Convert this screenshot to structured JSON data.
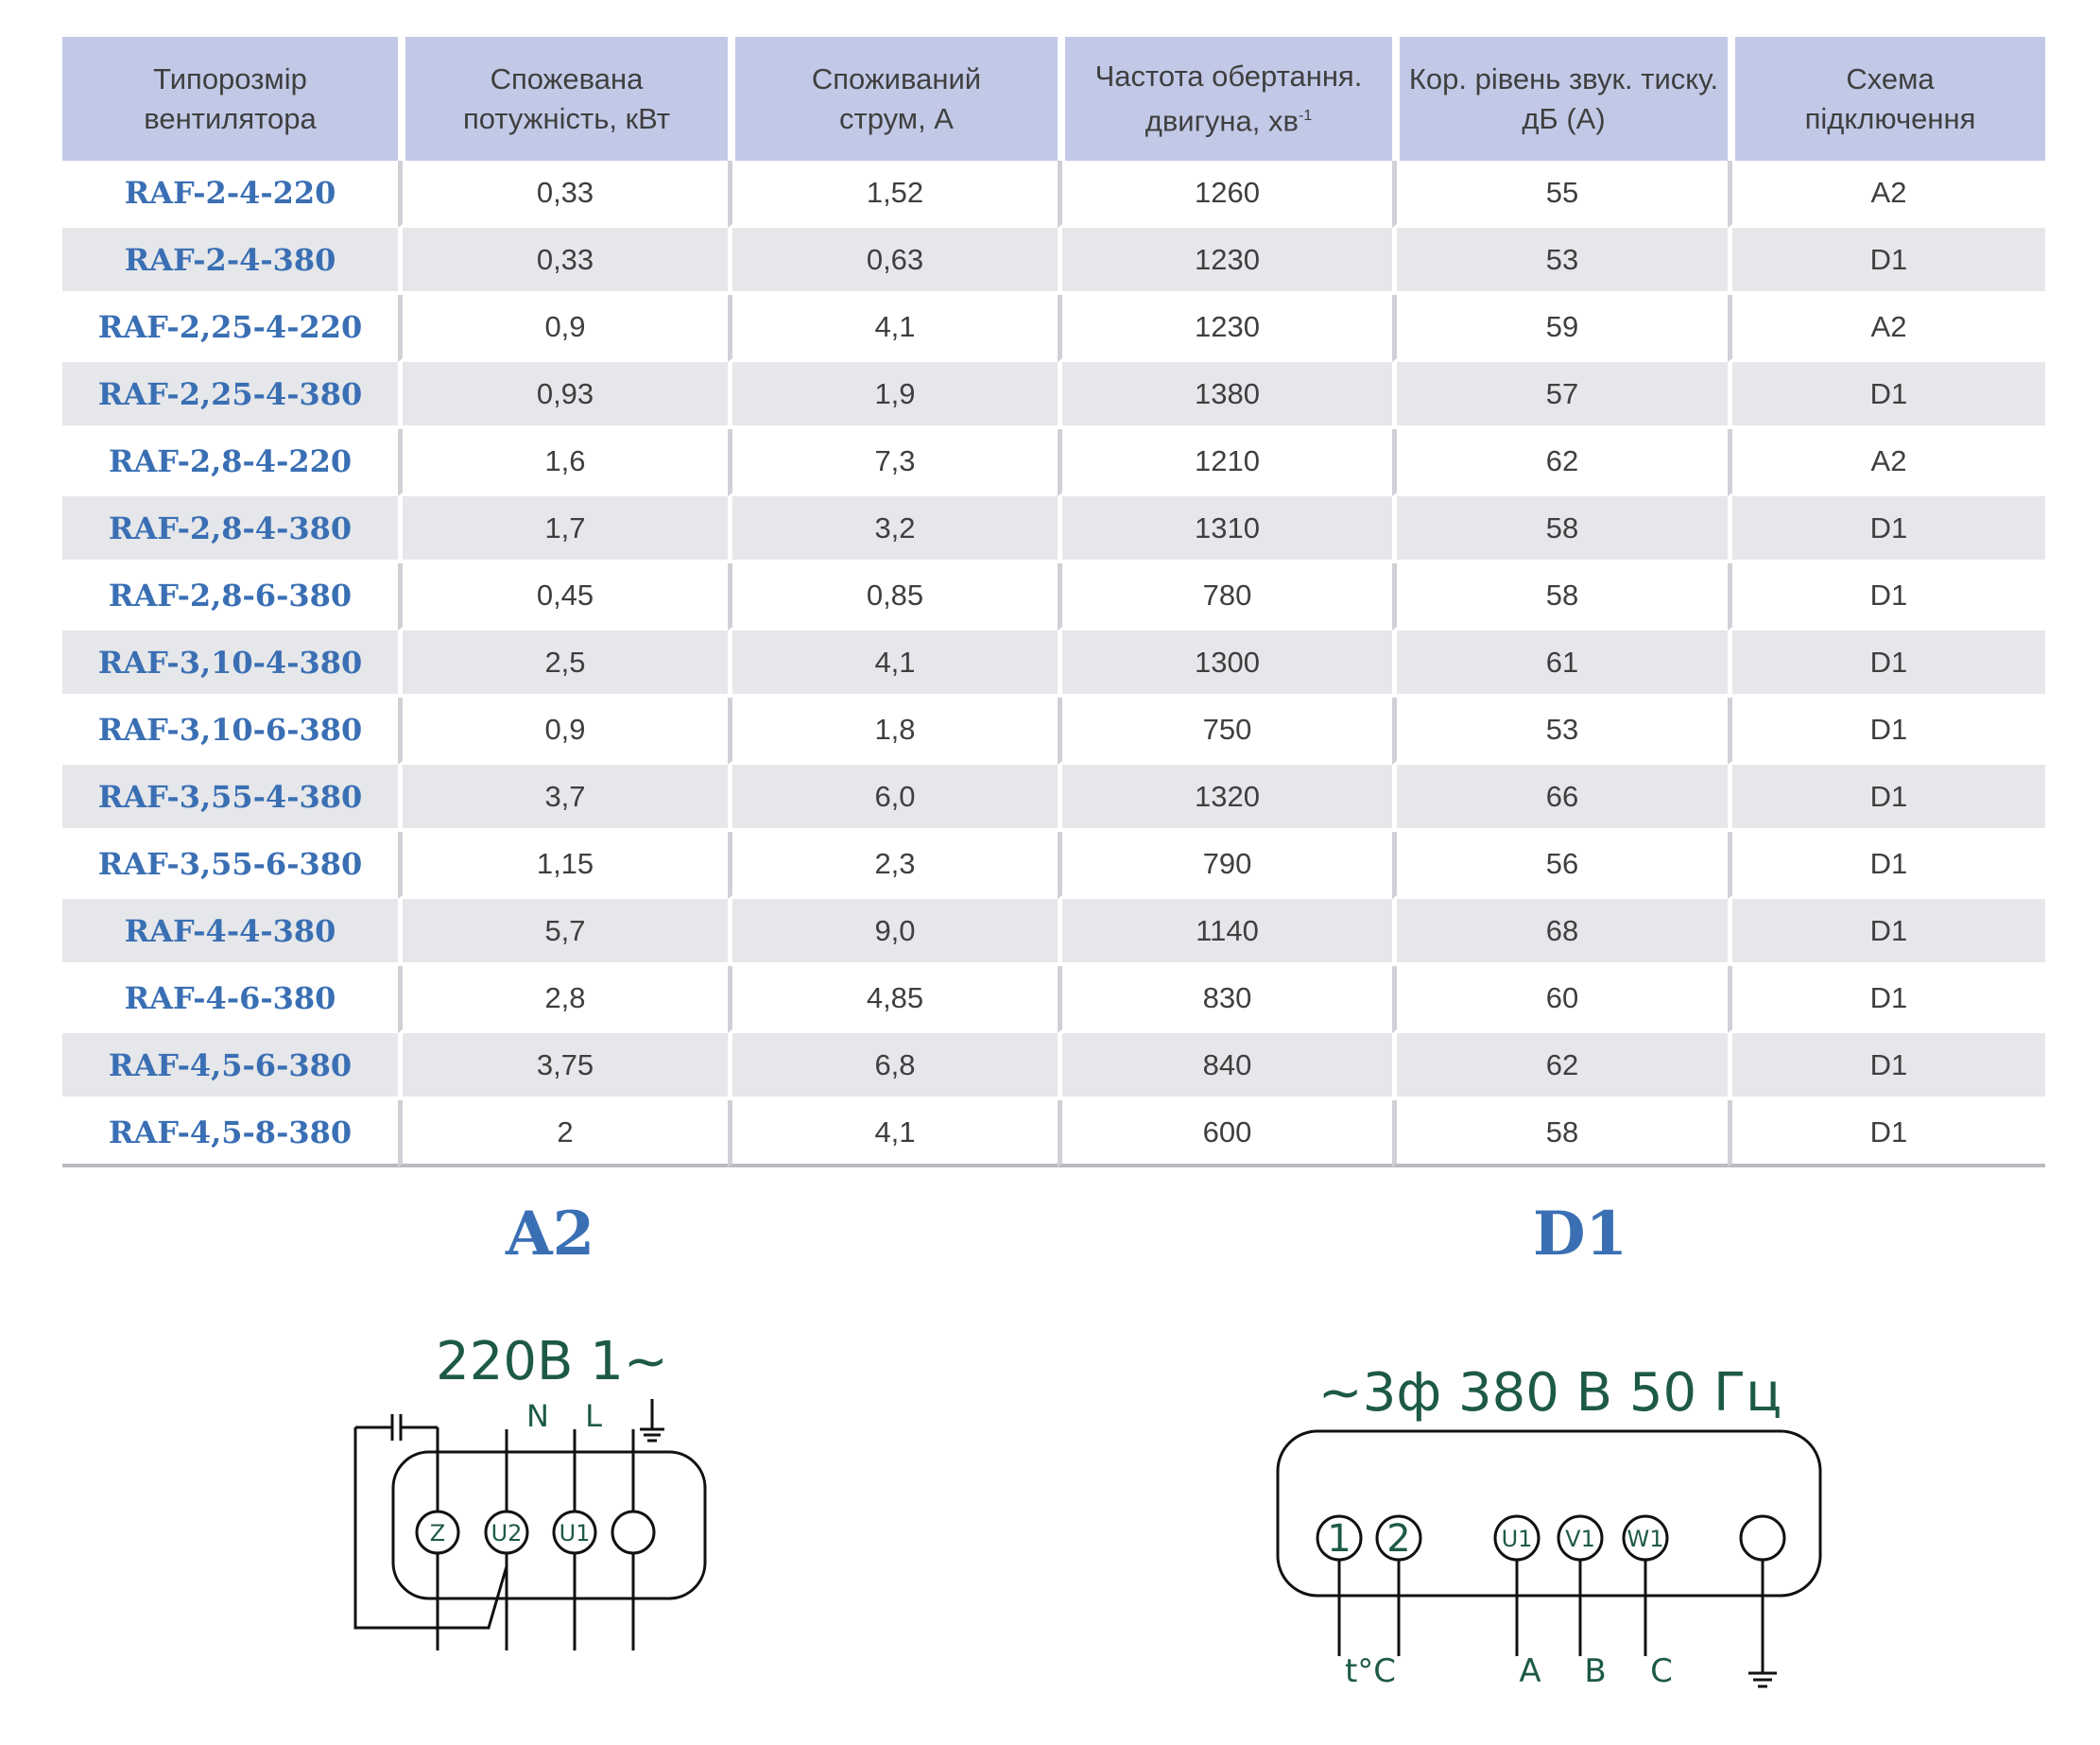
{
  "table": {
    "headers": [
      [
        "Типорозмір",
        "вентилятора"
      ],
      [
        "Спожевана",
        "потужність, кВт"
      ],
      [
        "Споживаний",
        "струм, А"
      ],
      [
        "Частота обертання.",
        "двигуна, хв",
        "-1"
      ],
      [
        "Кор. рівень звук. тиску.",
        "дБ (А)"
      ],
      [
        "Схема",
        "підключення"
      ]
    ],
    "rows": [
      [
        "RAF-2-4-220",
        "0,33",
        "1,52",
        "1260",
        "55",
        "A2"
      ],
      [
        "RAF-2-4-380",
        "0,33",
        "0,63",
        "1230",
        "53",
        "D1"
      ],
      [
        "RAF-2,25-4-220",
        "0,9",
        "4,1",
        "1230",
        "59",
        "A2"
      ],
      [
        "RAF-2,25-4-380",
        "0,93",
        "1,9",
        "1380",
        "57",
        "D1"
      ],
      [
        "RAF-2,8-4-220",
        "1,6",
        "7,3",
        "1210",
        "62",
        "A2"
      ],
      [
        "RAF-2,8-4-380",
        "1,7",
        "3,2",
        "1310",
        "58",
        "D1"
      ],
      [
        "RAF-2,8-6-380",
        "0,45",
        "0,85",
        "780",
        "58",
        "D1"
      ],
      [
        "RAF-3,10-4-380",
        "2,5",
        "4,1",
        "1300",
        "61",
        "D1"
      ],
      [
        "RAF-3,10-6-380",
        "0,9",
        "1,8",
        "750",
        "53",
        "D1"
      ],
      [
        "RAF-3,55-4-380",
        "3,7",
        "6,0",
        "1320",
        "66",
        "D1"
      ],
      [
        "RAF-3,55-6-380",
        "1,15",
        "2,3",
        "790",
        "56",
        "D1"
      ],
      [
        "RAF-4-4-380",
        "5,7",
        "9,0",
        "1140",
        "68",
        "D1"
      ],
      [
        "RAF-4-6-380",
        "2,8",
        "4,85",
        "830",
        "60",
        "D1"
      ],
      [
        "RAF-4,5-6-380",
        "3,75",
        "6,8",
        "840",
        "62",
        "D1"
      ],
      [
        "RAF-4,5-8-380",
        "2",
        "4,1",
        "600",
        "58",
        "D1"
      ]
    ]
  },
  "schemes": {
    "a2": {
      "title": "A2",
      "voltage": "220В 1~",
      "lines": [
        "N",
        "L"
      ],
      "terminals": [
        "Z",
        "U2",
        "U1",
        ""
      ],
      "ground_icon": "ground-icon",
      "capacitor_icon": "capacitor-icon"
    },
    "d1": {
      "title": "D1",
      "voltage": "~3ф 380 В 50 Гц",
      "terminals": [
        "1",
        "2",
        "U1",
        "V1",
        "W1",
        ""
      ],
      "labels": [
        "t°C",
        "A",
        "B",
        "C"
      ],
      "ground_icon": "ground-icon"
    }
  },
  "colors": {
    "header_bg": "#c2c9e7",
    "stripe_bg": "#e6e7ea",
    "model_text": "#3a6fb4",
    "diagram_text": "#1d5a45"
  }
}
